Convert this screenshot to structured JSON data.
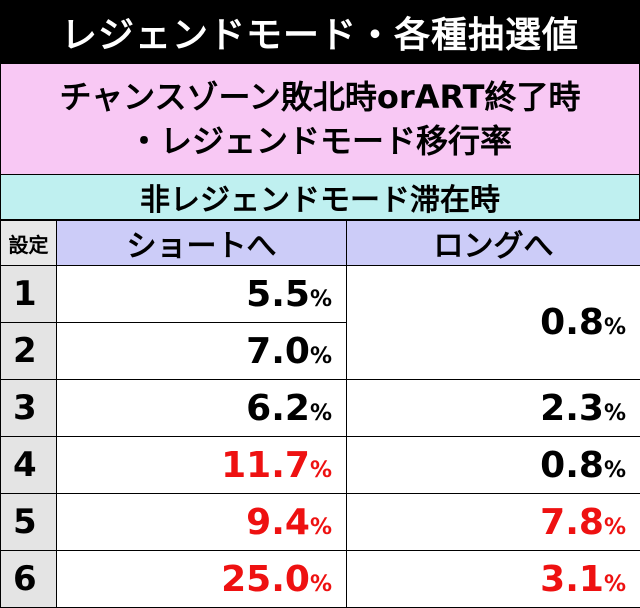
{
  "title": "レジェンドモード・各種抽選値",
  "subtitle_line1": "チャンスゾーン敗北時orART終了時",
  "subtitle_line2": "・レジェンドモード移行率",
  "section": "非レジェンドモード滞在時",
  "headers": {
    "setting": "設定",
    "short": "ショートへ",
    "long": "ロングへ"
  },
  "unit": "%",
  "colors": {
    "highlight": "#ee1111",
    "title_bg": "#000000",
    "subtitle_bg": "#f8c8f4",
    "section_bg": "#bff0f0",
    "header_bg": "#ccccf8"
  },
  "rows": [
    {
      "setting": "1",
      "short": "5.5",
      "long": "0.8"
    },
    {
      "setting": "2",
      "short": "7.0",
      "long": "0.8"
    },
    {
      "setting": "3",
      "short": "6.2",
      "long": "2.3"
    },
    {
      "setting": "4",
      "short": "11.7",
      "long": "0.8"
    },
    {
      "setting": "5",
      "short": "9.4",
      "long": "7.8"
    },
    {
      "setting": "6",
      "short": "25.0",
      "long": "3.1"
    }
  ]
}
